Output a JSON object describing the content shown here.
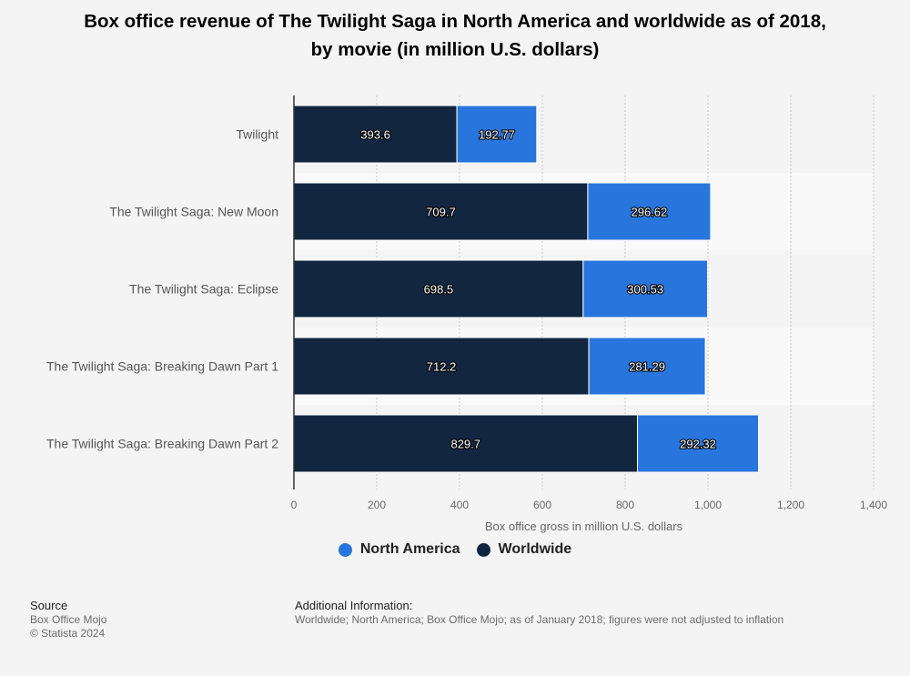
{
  "title_line1": "Box office revenue of The Twilight Saga in North America and worldwide as of 2018,",
  "title_line2": "by movie (in million U.S. dollars)",
  "chart_data": {
    "type": "bar",
    "orientation": "horizontal",
    "stacked": true,
    "categories": [
      "Twilight",
      "The Twilight Saga: New Moon",
      "The Twilight Saga: Eclipse",
      "The Twilight Saga: Breaking Dawn Part 1",
      "The Twilight Saga: Breaking Dawn Part 2"
    ],
    "series": [
      {
        "name": "Worldwide",
        "color": "#12263f",
        "values": [
          393.6,
          709.7,
          698.5,
          712.2,
          829.7
        ],
        "labels": [
          "393.6",
          "709.7",
          "698.5",
          "712.2",
          "829.7"
        ]
      },
      {
        "name": "North America",
        "color": "#2876dd",
        "values": [
          192.77,
          296.62,
          300.53,
          281.29,
          292.32
        ],
        "labels": [
          "192.77",
          "296.62",
          "300.53",
          "281.29",
          "292.32"
        ]
      }
    ],
    "xlim": [
      0,
      1400
    ],
    "xticks": [
      0,
      200,
      400,
      600,
      800,
      1000,
      1200,
      1400
    ],
    "xtick_labels": [
      "0",
      "200",
      "400",
      "600",
      "800",
      "1,000",
      "1,200",
      "1,400"
    ],
    "xlabel": "Box office gross in million U.S. dollars",
    "ylabel": "",
    "grid": true,
    "legend_position": "bottom-center"
  },
  "legend": [
    {
      "name": "North America",
      "color": "#2876dd"
    },
    {
      "name": "Worldwide",
      "color": "#12263f"
    }
  ],
  "footer": {
    "source_heading": "Source",
    "source_line1": "Box Office Mojo",
    "source_line2": "© Statista 2024",
    "info_heading": "Additional Information:",
    "info_text": "Worldwide; North America; Box Office Mojo; as of January 2018; figures were not adjusted to inflation"
  }
}
